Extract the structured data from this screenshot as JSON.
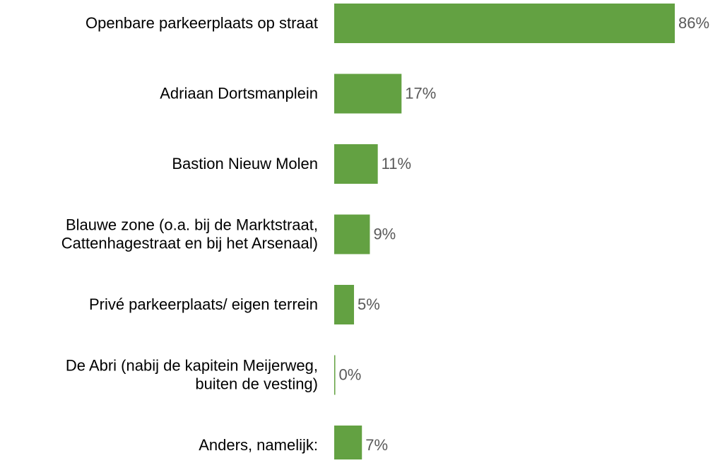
{
  "chart_data": {
    "type": "bar",
    "orientation": "horizontal",
    "categories": [
      "Openbare parkeerplaats op straat",
      "Adriaan Dortsmanplein",
      "Bastion Nieuw Molen",
      "Blauwe zone (o.a. bij de Marktstraat,\nCattenhagestraat en bij het Arsenaal)",
      "Privé parkeerplaats/ eigen terrein",
      "De Abri (nabij de kapitein Meijerweg,\nbuiten de vesting)",
      "Anders, namelijk:"
    ],
    "values": [
      86,
      17,
      11,
      9,
      5,
      0,
      7
    ],
    "value_labels": [
      "86%",
      "17%",
      "11%",
      "9%",
      "5%",
      "0%",
      "7%"
    ],
    "color": "#63a142"
  }
}
